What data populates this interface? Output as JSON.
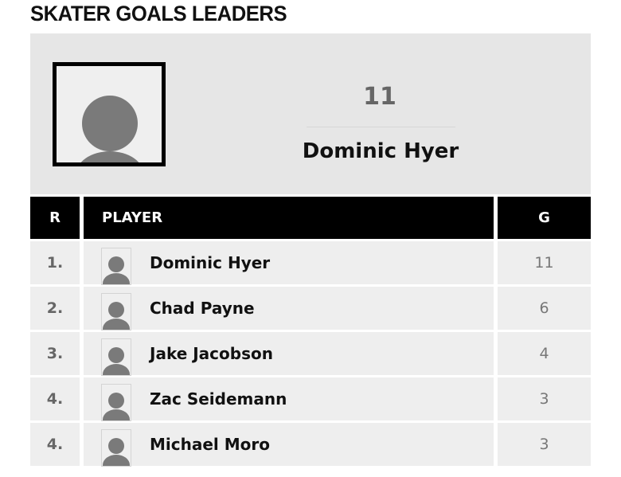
{
  "title": "SKATER GOALS LEADERS",
  "leader": {
    "value": "11",
    "name": "Dominic Hyer",
    "avatar_icon": "person-placeholder-icon"
  },
  "table": {
    "headers": {
      "rank": "R",
      "player": "PLAYER",
      "goals": "G"
    },
    "rows": [
      {
        "rank": "1.",
        "name": "Dominic Hyer",
        "goals": "11"
      },
      {
        "rank": "2.",
        "name": "Chad Payne",
        "goals": "6"
      },
      {
        "rank": "3.",
        "name": "Jake Jacobson",
        "goals": "4"
      },
      {
        "rank": "4.",
        "name": "Zac Seidemann",
        "goals": "3"
      },
      {
        "rank": "4.",
        "name": "Michael Moro",
        "goals": "3"
      }
    ]
  }
}
